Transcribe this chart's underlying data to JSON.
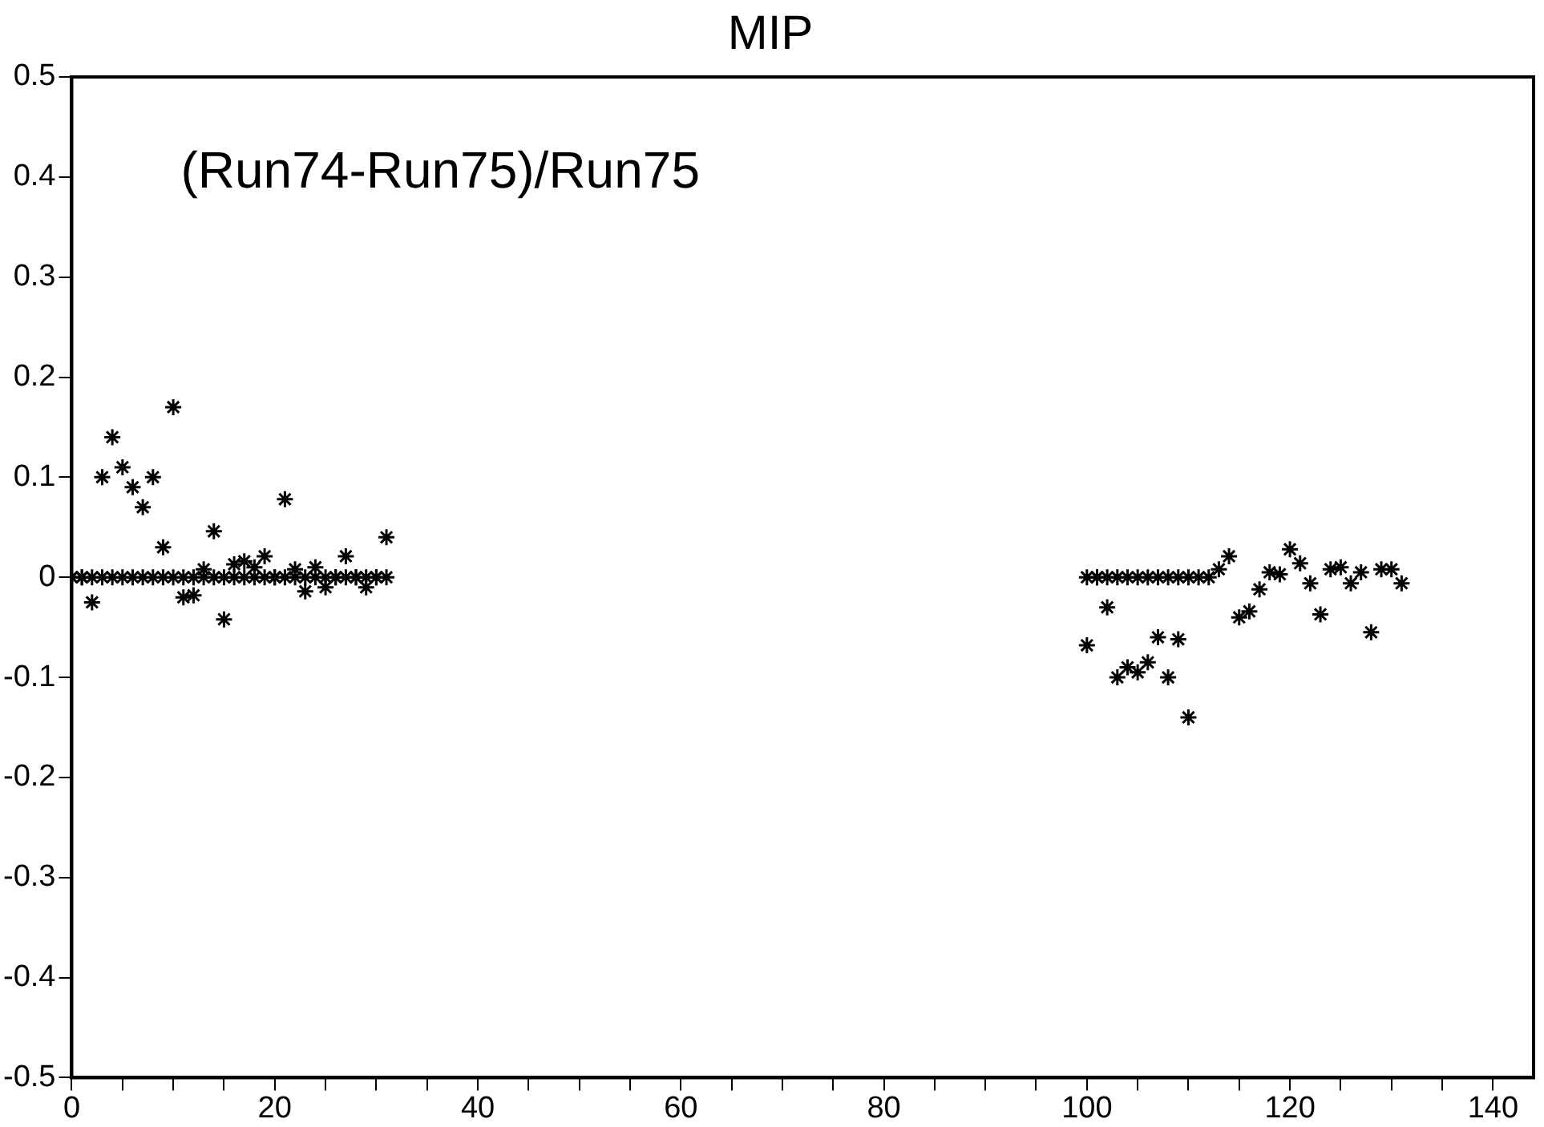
{
  "chart_data": {
    "type": "scatter",
    "title": "MIP",
    "annotations": [
      "(Run74-Run75)/Run75"
    ],
    "x": [
      0,
      1,
      2,
      3,
      4,
      5,
      6,
      7,
      8,
      9,
      10,
      11,
      12,
      13,
      14,
      15,
      16,
      17,
      18,
      19,
      20,
      21,
      22,
      23,
      24,
      25,
      26,
      27,
      28,
      29,
      30,
      31,
      0,
      1,
      2,
      3,
      4,
      5,
      6,
      7,
      8,
      9,
      10,
      11,
      12,
      13,
      14,
      15,
      16,
      17,
      18,
      19,
      20,
      21,
      22,
      23,
      24,
      25,
      26,
      27,
      28,
      29,
      30,
      31,
      100,
      101,
      102,
      103,
      104,
      105,
      106,
      107,
      108,
      109,
      110,
      111,
      112,
      113,
      114,
      115,
      116,
      117,
      118,
      119,
      120,
      121,
      122,
      123,
      124,
      125,
      126,
      127,
      128,
      129,
      130,
      131,
      100,
      101,
      102,
      103,
      104,
      105,
      106,
      107,
      108,
      109,
      110
    ],
    "series": [
      {
        "color": "#000000",
        "values": [
          0,
          0,
          -0.025,
          0.1,
          0.14,
          0.11,
          0.09,
          0.07,
          0.1,
          0.03,
          0.17,
          -0.02,
          -0.018,
          0.008,
          0.046,
          -0.042,
          0.013,
          0.016,
          0.01,
          0.021,
          0,
          0.078,
          0.008,
          -0.014,
          0.01,
          -0.01,
          0,
          0.021,
          0,
          -0.01,
          0,
          0.04,
          0,
          0,
          0,
          0,
          0,
          0,
          0,
          0,
          0,
          0,
          0,
          0,
          0,
          0,
          0,
          0,
          0,
          0,
          0,
          0,
          0,
          0,
          0,
          0,
          0,
          0,
          0,
          0,
          0,
          0,
          0,
          0,
          -0.068,
          0,
          -0.03,
          -0.1,
          -0.09,
          -0.095,
          -0.085,
          -0.06,
          -0.1,
          -0.062,
          -0.14,
          0,
          0,
          0.008,
          0.021,
          -0.04,
          -0.034,
          -0.012,
          0.005,
          0.003,
          0.028,
          0.014,
          -0.006,
          -0.037,
          0.008,
          0.01,
          -0.006,
          0.005,
          -0.055,
          0.008,
          0.008,
          -0.006,
          0,
          0,
          0,
          0,
          0,
          0,
          0,
          0,
          0,
          0,
          0
        ]
      }
    ],
    "marker": "cross",
    "grid": false,
    "legend": false,
    "xlim": [
      0,
      144
    ],
    "ylim": [
      -0.5,
      0.5
    ],
    "xticks": [
      0,
      {
        "value": 5,
        "label": null
      },
      {
        "value": 10,
        "label": null
      },
      {
        "value": 15,
        "label": null
      },
      20,
      {
        "value": 25,
        "label": null
      },
      {
        "value": 30,
        "label": null
      },
      {
        "value": 35,
        "label": null
      },
      40,
      {
        "value": 45,
        "label": null
      },
      {
        "value": 50,
        "label": null
      },
      {
        "value": 55,
        "label": null
      },
      60,
      {
        "value": 65,
        "label": null
      },
      {
        "value": 70,
        "label": null
      },
      {
        "value": 75,
        "label": null
      },
      80,
      {
        "value": 85,
        "label": null
      },
      {
        "value": 90,
        "label": null
      },
      {
        "value": 95,
        "label": null
      },
      100,
      {
        "value": 105,
        "label": null
      },
      {
        "value": 110,
        "label": null
      },
      {
        "value": 115,
        "label": null
      },
      120,
      {
        "value": 125,
        "label": null
      },
      {
        "value": 130,
        "label": null
      },
      {
        "value": 135,
        "label": null
      },
      140
    ],
    "yticks": [
      -0.5,
      -0.4,
      -0.3,
      -0.2,
      -0.1,
      0,
      0.1,
      0.2,
      0.3,
      0.4,
      0.5
    ]
  }
}
